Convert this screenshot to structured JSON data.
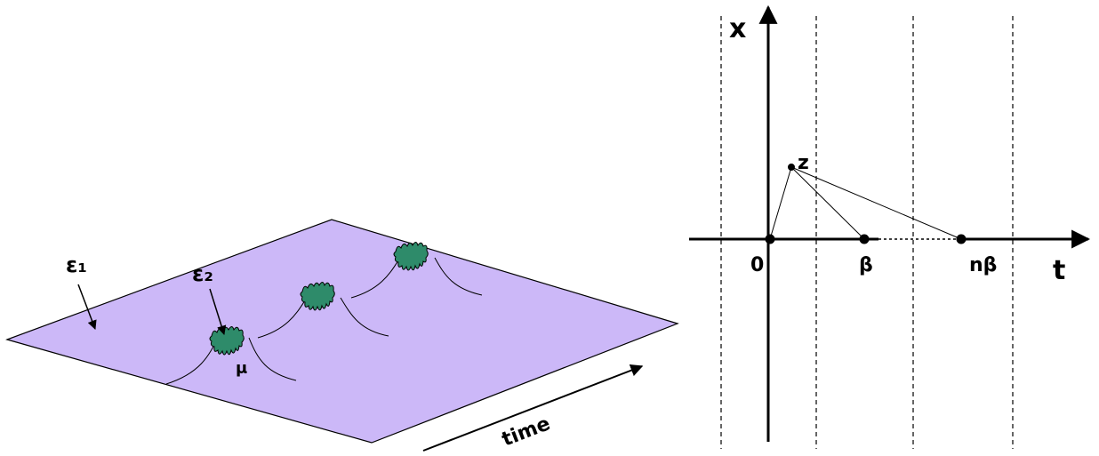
{
  "left": {
    "labels": {
      "eps1": "ε₁",
      "eps2": "ε₂",
      "mu": "μ",
      "time": "time"
    }
  },
  "right": {
    "labels": {
      "x": "x",
      "t": "t",
      "z": "z",
      "zero": "0",
      "beta": "β",
      "nbeta": "nβ"
    }
  }
}
